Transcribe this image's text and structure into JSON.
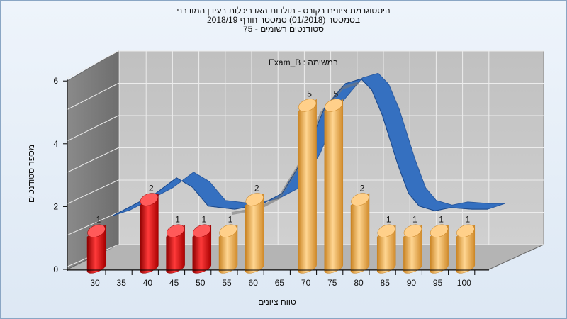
{
  "titles": {
    "line1": "היסטוגרמת ציונים בקורס - תולדות האדריכלות בעידן המודרני",
    "line2": "בסמסטר  (01/2018)  סמסטר חורף 2018/19",
    "line3": "סטודנטים רשומים - 75"
  },
  "chart_data": {
    "type": "bar",
    "subtitle": "במשימה : Exam_B",
    "xlabel": "טווח ציונים",
    "ylabel": "מספר סטודנטים",
    "x_ticks": [
      "30",
      "35",
      "40",
      "45",
      "50",
      "55",
      "60",
      "65",
      "70",
      "75",
      "80",
      "85",
      "90",
      "95",
      "100"
    ],
    "y_ticks": [
      "0",
      "2",
      "4",
      "6"
    ],
    "ylim": [
      0,
      6
    ],
    "bars": [
      {
        "x": 30,
        "value": 1,
        "color": "red"
      },
      {
        "x": 40,
        "value": 2,
        "color": "red"
      },
      {
        "x": 45,
        "value": 1,
        "color": "red"
      },
      {
        "x": 50,
        "value": 1,
        "color": "red"
      },
      {
        "x": 55,
        "value": 1,
        "color": "orange"
      },
      {
        "x": 60,
        "value": 2,
        "color": "orange"
      },
      {
        "x": 70,
        "value": 5,
        "color": "orange"
      },
      {
        "x": 75,
        "value": 5,
        "color": "orange"
      },
      {
        "x": 80,
        "value": 2,
        "color": "orange"
      },
      {
        "x": 85,
        "value": 1,
        "color": "orange"
      },
      {
        "x": 90,
        "value": 1,
        "color": "orange"
      },
      {
        "x": 95,
        "value": 1,
        "color": "orange"
      },
      {
        "x": 100,
        "value": 1,
        "color": "orange"
      }
    ],
    "curve": {
      "x": [
        32,
        40,
        44,
        47,
        50,
        55,
        60,
        64,
        68,
        72,
        76,
        79,
        81,
        83,
        86,
        88,
        90,
        93,
        96,
        100,
        103
      ],
      "values": [
        1.4,
        2.1,
        2.6,
        2.3,
        1.7,
        1.6,
        1.75,
        2.1,
        3.2,
        4.8,
        5.6,
        5.75,
        5.4,
        4.6,
        3.0,
        2.1,
        1.7,
        1.55,
        1.65,
        1.6,
        1.6
      ]
    },
    "colors": {
      "red": "#e01818",
      "orange": "#f0b055",
      "curve": "#3570c0",
      "back_wall": "#c4c4c4",
      "side_wall": "#7a7a7a"
    }
  }
}
